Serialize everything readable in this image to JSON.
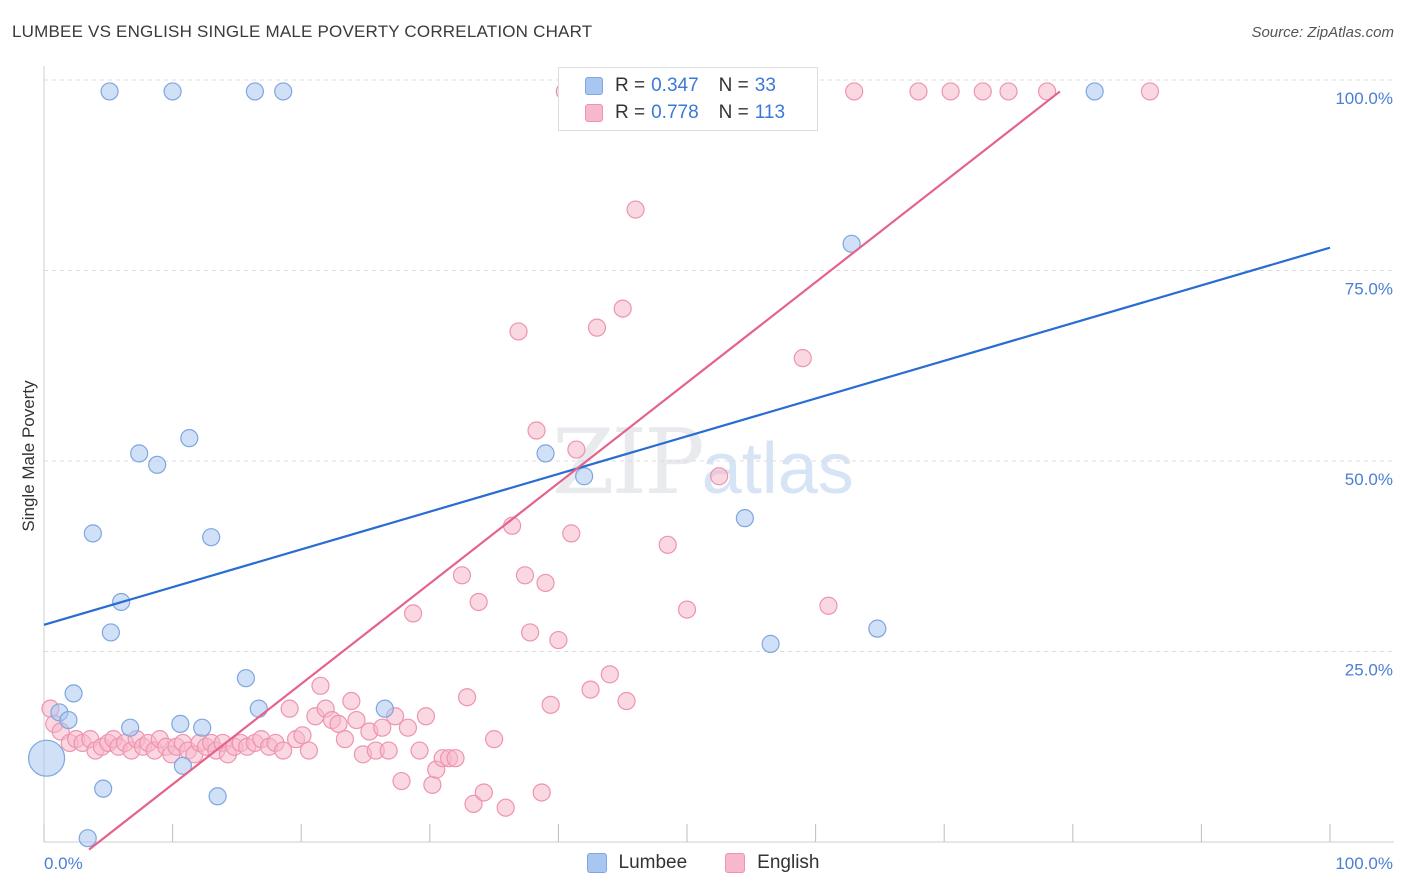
{
  "title": "LUMBEE VS ENGLISH SINGLE MALE POVERTY CORRELATION CHART",
  "source": "Source: ZipAtlas.com",
  "watermark": {
    "zip": "ZIP",
    "atlas": "atlas"
  },
  "colors": {
    "lumbee_fill": "#a9c6f0",
    "lumbee_stroke": "#7ea6e0",
    "lumbee_line": "#2a6dd2",
    "english_fill": "#f6b8cb",
    "english_stroke": "#ef93ae",
    "english_line": "#e5628c",
    "tick_label": "#4a7fd4",
    "grid": "#dcdcdc"
  },
  "legend_top": {
    "lumbee": {
      "r_label": "R = ",
      "r_value": "0.347",
      "n_label": "N = ",
      "n_value": "33"
    },
    "english": {
      "r_label": "R = ",
      "r_value": "0.778",
      "n_label": "N = ",
      "n_value": "113"
    }
  },
  "legend_bottom": {
    "lumbee": "Lumbee",
    "english": "English"
  },
  "chart_data": {
    "type": "scatter",
    "title": "LUMBEE VS ENGLISH SINGLE MALE POVERTY CORRELATION CHART",
    "xlabel": "",
    "ylabel": "Single Male Poverty",
    "xlim": [
      0,
      100
    ],
    "ylim": [
      0,
      100
    ],
    "x_tick_labels": {
      "left": "0.0%",
      "right": "100.0%"
    },
    "y_tick_labels": [
      "25.0%",
      "50.0%",
      "75.0%",
      "100.0%"
    ],
    "y_tick_values": [
      25,
      50,
      75,
      100
    ],
    "series": [
      {
        "name": "Lumbee",
        "trend": {
          "x": [
            0,
            100
          ],
          "y": [
            28.5,
            78
          ]
        },
        "points": [
          {
            "x": 0.2,
            "y": 11,
            "big": true
          },
          {
            "x": 1.2,
            "y": 17
          },
          {
            "x": 1.9,
            "y": 16
          },
          {
            "x": 2.3,
            "y": 19.5
          },
          {
            "x": 3.4,
            "y": 0.5
          },
          {
            "x": 3.8,
            "y": 40.5
          },
          {
            "x": 4.6,
            "y": 7
          },
          {
            "x": 5.1,
            "y": 98.5
          },
          {
            "x": 5.2,
            "y": 27.5
          },
          {
            "x": 6.0,
            "y": 31.5
          },
          {
            "x": 6.7,
            "y": 15
          },
          {
            "x": 7.4,
            "y": 51
          },
          {
            "x": 8.8,
            "y": 49.5
          },
          {
            "x": 10.0,
            "y": 98.5
          },
          {
            "x": 10.6,
            "y": 15.5
          },
          {
            "x": 10.8,
            "y": 10
          },
          {
            "x": 11.3,
            "y": 53
          },
          {
            "x": 12.3,
            "y": 15
          },
          {
            "x": 13.0,
            "y": 40
          },
          {
            "x": 13.5,
            "y": 6
          },
          {
            "x": 15.7,
            "y": 21.5
          },
          {
            "x": 16.4,
            "y": 98.5
          },
          {
            "x": 16.7,
            "y": 17.5
          },
          {
            "x": 18.6,
            "y": 98.5
          },
          {
            "x": 26.5,
            "y": 17.5
          },
          {
            "x": 39.0,
            "y": 51
          },
          {
            "x": 42.0,
            "y": 48
          },
          {
            "x": 54.5,
            "y": 42.5
          },
          {
            "x": 56.5,
            "y": 26
          },
          {
            "x": 62.8,
            "y": 78.5
          },
          {
            "x": 64.8,
            "y": 28
          },
          {
            "x": 81.7,
            "y": 98.5
          }
        ]
      },
      {
        "name": "English",
        "trend": {
          "x": [
            3.5,
            79
          ],
          "y": [
            -1,
            98.5
          ]
        },
        "points": [
          {
            "x": 0.5,
            "y": 17.5
          },
          {
            "x": 0.8,
            "y": 15.5
          },
          {
            "x": 1.3,
            "y": 14.5
          },
          {
            "x": 2.0,
            "y": 13
          },
          {
            "x": 2.5,
            "y": 13.5
          },
          {
            "x": 3.0,
            "y": 13
          },
          {
            "x": 3.6,
            "y": 13.5
          },
          {
            "x": 4.0,
            "y": 12
          },
          {
            "x": 4.5,
            "y": 12.5
          },
          {
            "x": 5.0,
            "y": 13
          },
          {
            "x": 5.4,
            "y": 13.5
          },
          {
            "x": 5.8,
            "y": 12.5
          },
          {
            "x": 6.3,
            "y": 13
          },
          {
            "x": 6.8,
            "y": 12
          },
          {
            "x": 7.2,
            "y": 13.5
          },
          {
            "x": 7.7,
            "y": 12.5
          },
          {
            "x": 8.1,
            "y": 13
          },
          {
            "x": 8.6,
            "y": 12
          },
          {
            "x": 9.0,
            "y": 13.5
          },
          {
            "x": 9.5,
            "y": 12.5
          },
          {
            "x": 9.9,
            "y": 11.5
          },
          {
            "x": 10.3,
            "y": 12.5
          },
          {
            "x": 10.8,
            "y": 13
          },
          {
            "x": 11.2,
            "y": 12
          },
          {
            "x": 11.7,
            "y": 11.5
          },
          {
            "x": 12.1,
            "y": 13
          },
          {
            "x": 12.6,
            "y": 12.5
          },
          {
            "x": 13.0,
            "y": 13
          },
          {
            "x": 13.4,
            "y": 12
          },
          {
            "x": 13.9,
            "y": 13
          },
          {
            "x": 14.3,
            "y": 11.5
          },
          {
            "x": 14.8,
            "y": 12.5
          },
          {
            "x": 15.3,
            "y": 13
          },
          {
            "x": 15.8,
            "y": 12.5
          },
          {
            "x": 16.4,
            "y": 13
          },
          {
            "x": 16.9,
            "y": 13.5
          },
          {
            "x": 17.5,
            "y": 12.5
          },
          {
            "x": 18.0,
            "y": 13
          },
          {
            "x": 18.6,
            "y": 12
          },
          {
            "x": 19.1,
            "y": 17.5
          },
          {
            "x": 19.6,
            "y": 13.5
          },
          {
            "x": 20.1,
            "y": 14
          },
          {
            "x": 20.6,
            "y": 12
          },
          {
            "x": 21.1,
            "y": 16.5
          },
          {
            "x": 21.5,
            "y": 20.5
          },
          {
            "x": 21.9,
            "y": 17.5
          },
          {
            "x": 22.4,
            "y": 16
          },
          {
            "x": 22.9,
            "y": 15.5
          },
          {
            "x": 23.4,
            "y": 13.5
          },
          {
            "x": 23.9,
            "y": 18.5
          },
          {
            "x": 24.3,
            "y": 16
          },
          {
            "x": 24.8,
            "y": 11.5
          },
          {
            "x": 25.3,
            "y": 14.5
          },
          {
            "x": 25.8,
            "y": 12
          },
          {
            "x": 26.3,
            "y": 15
          },
          {
            "x": 26.8,
            "y": 12
          },
          {
            "x": 27.3,
            "y": 16.5
          },
          {
            "x": 27.8,
            "y": 8
          },
          {
            "x": 28.3,
            "y": 15
          },
          {
            "x": 28.7,
            "y": 30
          },
          {
            "x": 29.2,
            "y": 12
          },
          {
            "x": 29.7,
            "y": 16.5
          },
          {
            "x": 30.2,
            "y": 7.5
          },
          {
            "x": 30.5,
            "y": 9.5
          },
          {
            "x": 31.0,
            "y": 11
          },
          {
            "x": 31.5,
            "y": 11
          },
          {
            "x": 32.0,
            "y": 11
          },
          {
            "x": 32.5,
            "y": 35
          },
          {
            "x": 32.9,
            "y": 19
          },
          {
            "x": 33.4,
            "y": 5
          },
          {
            "x": 33.8,
            "y": 31.5
          },
          {
            "x": 34.2,
            "y": 6.5
          },
          {
            "x": 35.0,
            "y": 13.5
          },
          {
            "x": 35.9,
            "y": 4.5
          },
          {
            "x": 36.4,
            "y": 41.5
          },
          {
            "x": 36.9,
            "y": 67
          },
          {
            "x": 37.4,
            "y": 35
          },
          {
            "x": 37.8,
            "y": 27.5
          },
          {
            "x": 38.3,
            "y": 54
          },
          {
            "x": 38.7,
            "y": 6.5
          },
          {
            "x": 39.0,
            "y": 34
          },
          {
            "x": 39.4,
            "y": 18
          },
          {
            "x": 40.0,
            "y": 26.5
          },
          {
            "x": 40.5,
            "y": 98.5
          },
          {
            "x": 41.0,
            "y": 40.5
          },
          {
            "x": 41.4,
            "y": 51.5
          },
          {
            "x": 42.5,
            "y": 20
          },
          {
            "x": 43.0,
            "y": 67.5
          },
          {
            "x": 44.0,
            "y": 22
          },
          {
            "x": 45.0,
            "y": 70
          },
          {
            "x": 45.3,
            "y": 18.5
          },
          {
            "x": 46.0,
            "y": 83
          },
          {
            "x": 47.0,
            "y": 98.5
          },
          {
            "x": 48.0,
            "y": 98.5
          },
          {
            "x": 48.5,
            "y": 39
          },
          {
            "x": 50.0,
            "y": 30.5
          },
          {
            "x": 52.5,
            "y": 48
          },
          {
            "x": 54.0,
            "y": 98.5
          },
          {
            "x": 56.0,
            "y": 98.5
          },
          {
            "x": 59.0,
            "y": 63.5
          },
          {
            "x": 61.0,
            "y": 31
          },
          {
            "x": 63.0,
            "y": 98.5
          },
          {
            "x": 68.0,
            "y": 98.5
          },
          {
            "x": 70.5,
            "y": 98.5
          },
          {
            "x": 73.0,
            "y": 98.5
          },
          {
            "x": 75.0,
            "y": 98.5
          },
          {
            "x": 78.0,
            "y": 98.5
          },
          {
            "x": 86.0,
            "y": 98.5
          },
          {
            "x": 50.5,
            "y": 98.5
          }
        ]
      }
    ]
  }
}
